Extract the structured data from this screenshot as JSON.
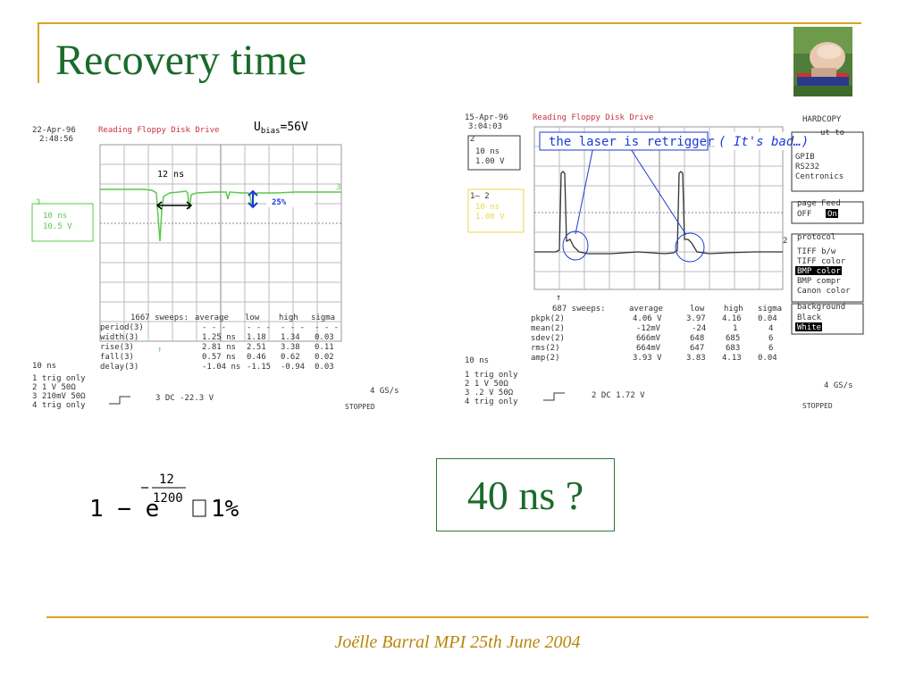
{
  "slide": {
    "title": "Recovery time",
    "footer": "Joëlle Barral MPI 25th June 2004",
    "answer": "40 ns ?",
    "formula": {
      "lead": "1 − e",
      "exp_num": "12",
      "exp_den": "1200",
      "result": "1%"
    }
  },
  "colors": {
    "title": "#1a6b2a",
    "frame": "#d9a520",
    "scope_trace_green": "#59c94a",
    "scope_trace_black": "#333333",
    "scope_header_red": "#c8323c",
    "annotation_blue": "#1a3ad6"
  },
  "left_scope": {
    "date": "22-Apr-96",
    "time": "2:48:56",
    "header": "Reading Floppy Disk Drive",
    "ubias_prefix": "U",
    "ubias_sub": "bias",
    "ubias_value": "=56V",
    "note_12ns": "12 ns",
    "note_25pct": "25%",
    "channel_marker": "3",
    "channel_box_line1": "10 ns",
    "channel_box_line2": "10.5 V",
    "stats_header": [
      "1667 sweeps:",
      "average",
      "low",
      "high",
      "sigma"
    ],
    "stats_rows": [
      {
        "label": "period(3)",
        "avg": "- - -",
        "low": "- - -",
        "high": "- - -",
        "sigma": "- - -"
      },
      {
        "label": "width(3)",
        "avg": "1.25 ns",
        "low": "1.18",
        "high": "1.34",
        "sigma": "0.03"
      },
      {
        "label": "rise(3)",
        "avg": "2.81 ns",
        "low": "2.51",
        "high": "3.38",
        "sigma": "0.11"
      },
      {
        "label": "fall(3)",
        "avg": "0.57 ns",
        "low": "0.46",
        "high": "0.62",
        "sigma": "0.02"
      },
      {
        "label": "delay(3)",
        "avg": "-1.04 ns",
        "low": "-1.15",
        "high": "-0.94",
        "sigma": "0.03"
      }
    ],
    "timebase": "10 ns",
    "chan_lines": [
      "1 trig only",
      "2  1  V  50Ω",
      "3 210mV  50Ω",
      "4 trig only"
    ],
    "coupling": "3  DC -22.3 V",
    "rate": "4 GS/s",
    "status": "STOPPED"
  },
  "right_scope": {
    "date": "15-Apr-96",
    "time": "3:04:03",
    "header": "Reading Floppy Disk Drive",
    "annotation_retrigger": "the laser is retriggered",
    "annotation_bad": "( It's bad…)",
    "chan2_marker": "2",
    "box1_line1": "10 ns",
    "box1_line2": "1.00 V",
    "box2_label": "1— 2",
    "box2_line1": "10 ns",
    "box2_line2": "1.00 V",
    "menu_hardcopy": "HARDCOPY",
    "menu_output": "ut to",
    "menu_outputs": [
      "GPIB",
      "RS232",
      "Centronics"
    ],
    "menu_pagefeed": "page Feed",
    "menu_off": "OFF",
    "menu_on": "On",
    "menu_protocol": "protocol",
    "menu_protocols": [
      "TIFF b/w",
      "TIFF color",
      "BMP color",
      "BMP compr",
      "Canon color"
    ],
    "menu_background": "background",
    "menu_black": "Black",
    "menu_white": "White",
    "stats_header": [
      "687 sweeps:",
      "average",
      "low",
      "high",
      "sigma"
    ],
    "stats_rows": [
      {
        "label": "pkpk(2)",
        "avg": "4.06 V",
        "low": "3.97",
        "high": "4.16",
        "sigma": "0.04"
      },
      {
        "label": "mean(2)",
        "avg": "-12mV",
        "low": "-24",
        "high": "1",
        "sigma": "4"
      },
      {
        "label": "sdev(2)",
        "avg": "666mV",
        "low": "648",
        "high": "685",
        "sigma": "6"
      },
      {
        "label": "rms(2)",
        "avg": "664mV",
        "low": "647",
        "high": "683",
        "sigma": "6"
      },
      {
        "label": "amp(2)",
        "avg": "3.93 V",
        "low": "3.83",
        "high": "4.13",
        "sigma": "0.04"
      }
    ],
    "timebase": "10 ns",
    "chan_lines": [
      "1 trig only",
      "2  1  V  50Ω",
      "3  .2  V  50Ω",
      "4 trig only"
    ],
    "coupling": "2  DC 1.72 V",
    "rate": "4 GS/s",
    "status": "STOPPED"
  }
}
